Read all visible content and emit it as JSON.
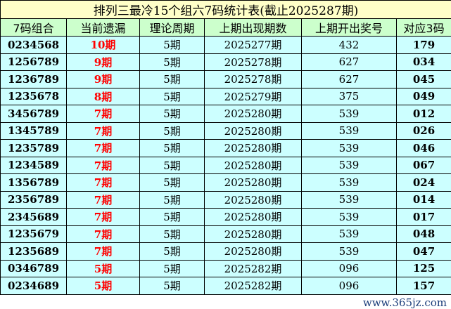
{
  "title": "排列三最冷15个组六7码统计表(截止2025287期)",
  "headers": [
    "7码组合",
    "当前遗漏",
    "理论周期",
    "上期出现期数",
    "上期开出奖号",
    "对应3码"
  ],
  "rows": [
    [
      "0234568",
      "10期",
      "5期",
      "2025277期",
      "432",
      "179"
    ],
    [
      "1256789",
      "9期",
      "5期",
      "2025278期",
      "627",
      "034"
    ],
    [
      "1236789",
      "9期",
      "5期",
      "2025278期",
      "627",
      "045"
    ],
    [
      "1235678",
      "8期",
      "5期",
      "2025279期",
      "375",
      "049"
    ],
    [
      "3456789",
      "7期",
      "5期",
      "2025280期",
      "539",
      "012"
    ],
    [
      "1345789",
      "7期",
      "5期",
      "2025280期",
      "539",
      "026"
    ],
    [
      "1235789",
      "7期",
      "5期",
      "2025280期",
      "539",
      "046"
    ],
    [
      "1234589",
      "7期",
      "5期",
      "2025280期",
      "539",
      "067"
    ],
    [
      "1356789",
      "7期",
      "5期",
      "2025280期",
      "539",
      "024"
    ],
    [
      "2356789",
      "7期",
      "5期",
      "2025280期",
      "539",
      "014"
    ],
    [
      "2345689",
      "7期",
      "5期",
      "2025280期",
      "539",
      "017"
    ],
    [
      "1235679",
      "7期",
      "5期",
      "2025280期",
      "539",
      "048"
    ],
    [
      "1235689",
      "7期",
      "5期",
      "2025280期",
      "539",
      "047"
    ],
    [
      "0346789",
      "5期",
      "5期",
      "2025282期",
      "096",
      "125"
    ],
    [
      "0234689",
      "5期",
      "5期",
      "2025282期",
      "096",
      "157"
    ]
  ],
  "watermark": "www.365jz.com",
  "colors": {
    "title_bg": "#ffffc8",
    "header_bg": "#ccffcc",
    "row_bg": "#ccffff",
    "miss_text": "#ff0000"
  }
}
